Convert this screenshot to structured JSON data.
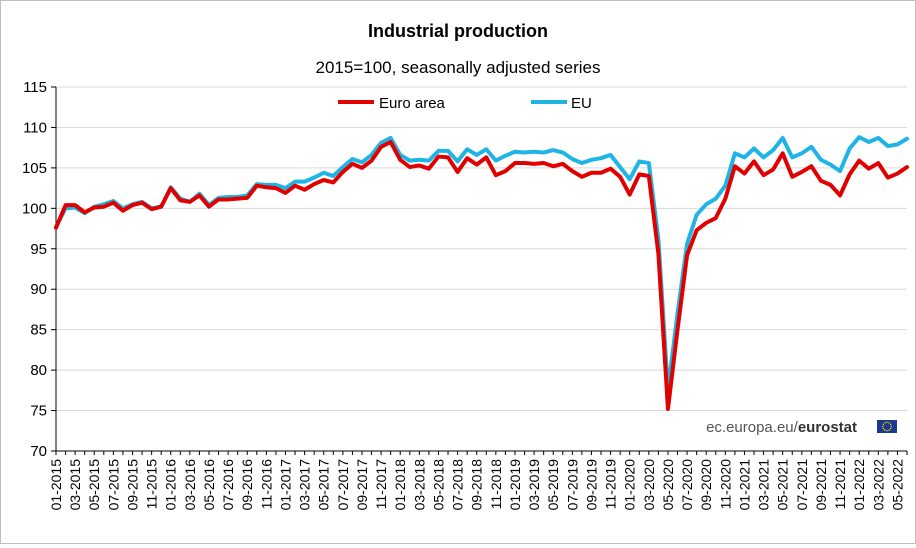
{
  "chart_data": {
    "type": "line",
    "title": "Industrial production",
    "subtitle": "2015=100, seasonally adjusted series",
    "xlabel": "",
    "ylabel": "",
    "ylim": [
      70,
      115
    ],
    "yticks": [
      70,
      75,
      80,
      85,
      90,
      95,
      100,
      105,
      110,
      115
    ],
    "grid": true,
    "legend_position": "top",
    "x_start": "01-2015",
    "x_end": "05-2022",
    "xtick_labels": [
      "01-2015",
      "03-2015",
      "05-2015",
      "07-2015",
      "09-2015",
      "11-2015",
      "01-2016",
      "03-2016",
      "05-2016",
      "07-2016",
      "09-2016",
      "11-2016",
      "01-2017",
      "03-2017",
      "05-2017",
      "07-2017",
      "09-2017",
      "11-2017",
      "01-2018",
      "03-2018",
      "05-2018",
      "07-2018",
      "09-2018",
      "11-2018",
      "01-2019",
      "03-2019",
      "05-2019",
      "07-2019",
      "09-2019",
      "11-2019",
      "01-2020",
      "03-2020",
      "05-2020",
      "07-2020",
      "09-2020",
      "11-2020",
      "01-2021",
      "03-2021",
      "05-2021",
      "07-2021",
      "09-2021",
      "11-2021",
      "01-2022",
      "03-2022",
      "05-2022"
    ],
    "series": [
      {
        "name": "Euro area",
        "color": "#e00000",
        "values": [
          97.6,
          100.4,
          100.4,
          99.5,
          100.1,
          100.2,
          100.7,
          99.7,
          100.4,
          100.7,
          99.9,
          100.2,
          102.5,
          101.0,
          100.8,
          101.6,
          100.2,
          101.1,
          101.1,
          101.2,
          101.3,
          102.8,
          102.6,
          102.5,
          101.9,
          102.8,
          102.3,
          103.0,
          103.5,
          103.2,
          104.5,
          105.5,
          105.0,
          105.9,
          107.6,
          108.2,
          106.0,
          105.1,
          105.3,
          104.9,
          106.4,
          106.3,
          104.5,
          106.2,
          105.4,
          106.3,
          104.1,
          104.6,
          105.6,
          105.6,
          105.5,
          105.6,
          105.2,
          105.5,
          104.6,
          103.9,
          104.4,
          104.4,
          104.9,
          103.9,
          101.7,
          104.2,
          104.0,
          94.4,
          75.2,
          85.0,
          94.2,
          97.3,
          98.2,
          98.8,
          101.2,
          105.2,
          104.3,
          105.8,
          104.1,
          104.8,
          106.8,
          103.9,
          104.5,
          105.2,
          103.4,
          102.9,
          101.6,
          104.2,
          105.9,
          104.9,
          105.6,
          103.8,
          104.3,
          105.1
        ]
      },
      {
        "name": "EU",
        "color": "#1fb4e6",
        "values": [
          97.7,
          100.0,
          100.1,
          99.4,
          100.2,
          100.5,
          100.9,
          100.0,
          100.5,
          100.8,
          100.0,
          100.2,
          102.6,
          101.2,
          100.8,
          101.8,
          100.4,
          101.3,
          101.4,
          101.4,
          101.6,
          103.0,
          102.9,
          102.9,
          102.5,
          103.3,
          103.3,
          103.8,
          104.4,
          104.0,
          105.1,
          106.1,
          105.7,
          106.6,
          108.1,
          108.7,
          106.6,
          105.9,
          106.0,
          105.9,
          107.1,
          107.1,
          105.8,
          107.3,
          106.6,
          107.3,
          105.9,
          106.5,
          107.0,
          106.9,
          107.0,
          106.9,
          107.2,
          106.9,
          106.1,
          105.6,
          106.0,
          106.2,
          106.6,
          105.1,
          103.6,
          105.8,
          105.6,
          96.2,
          77.5,
          87.0,
          95.6,
          99.2,
          100.5,
          101.2,
          102.8,
          106.8,
          106.3,
          107.4,
          106.3,
          107.2,
          108.7,
          106.3,
          106.8,
          107.6,
          106.0,
          105.4,
          104.6,
          107.4,
          108.8,
          108.2,
          108.7,
          107.7,
          107.9,
          108.6
        ]
      }
    ]
  },
  "watermark": {
    "source": "ec.europa.eu/",
    "brand": "eurostat",
    "flag_color": "#1a3a8f",
    "star_color": "#ffdd00"
  }
}
